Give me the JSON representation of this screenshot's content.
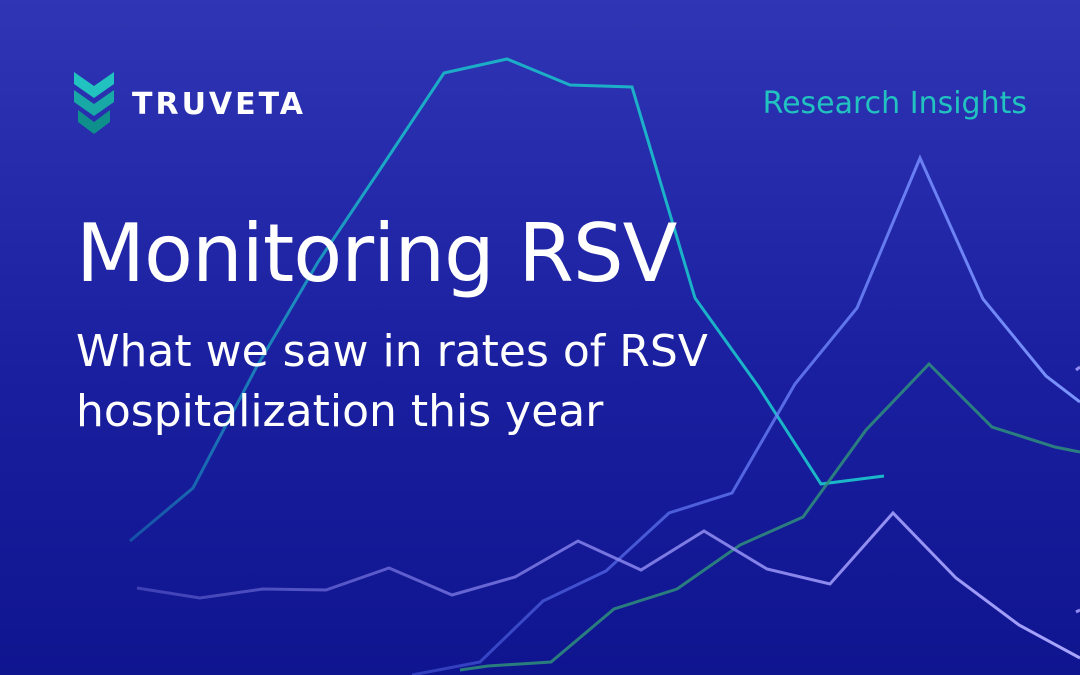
{
  "brand": {
    "name": "TRUVETA",
    "logo_icon": "truveta-chevron-logo",
    "colors": {
      "teal": "#21c2bf",
      "dark_teal": "#0e8f8c",
      "background": "#1a1f9f"
    }
  },
  "tag": "Research Insights",
  "title": "Monitoring RSV",
  "subtitle": "What we saw in rates of RSV hospitalization this year",
  "background_lines": [
    {
      "name": "teal-line",
      "color": "#1bb8c9",
      "opacity": 0.9
    },
    {
      "name": "blue-line-tall",
      "color": "#6f86ff",
      "opacity": 0.9
    },
    {
      "name": "green-line",
      "color": "#2f8f7a",
      "opacity": 0.85
    },
    {
      "name": "lavender-line",
      "color": "#8f8bf2",
      "opacity": 0.85
    }
  ]
}
